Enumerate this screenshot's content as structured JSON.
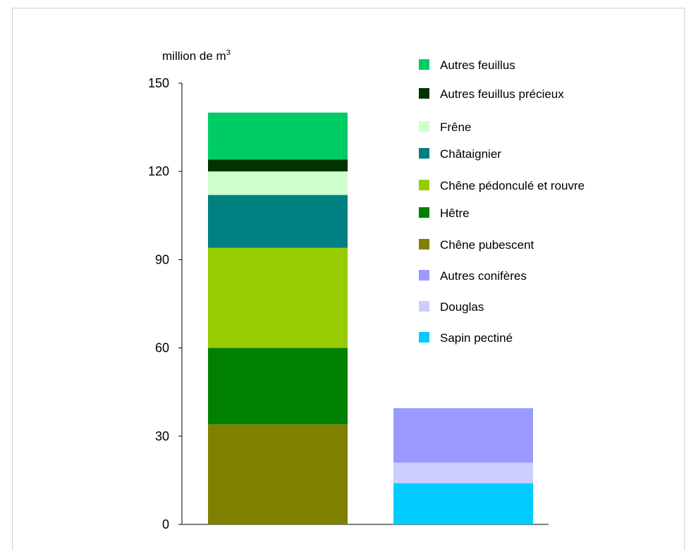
{
  "chart_data": {
    "type": "bar",
    "stacked": true,
    "ylabel": "million de m",
    "ylabel_superscript": "3",
    "ylim": [
      0,
      150
    ],
    "yticks": [
      0,
      30,
      60,
      90,
      120,
      150
    ],
    "grid": false,
    "legend_position": "right",
    "categories": [
      "",
      ""
    ],
    "series": [
      {
        "name": "Chêne pubescent",
        "color": "#808000",
        "values": [
          34,
          0
        ]
      },
      {
        "name": "Hêtre",
        "color": "#008000",
        "values": [
          26,
          0
        ]
      },
      {
        "name": "Chêne pédonculé et rouvre",
        "color": "#99cc00",
        "values": [
          34,
          0
        ]
      },
      {
        "name": "Châtaignier",
        "color": "#008080",
        "values": [
          18,
          0
        ]
      },
      {
        "name": "Frêne",
        "color": "#ccffcc",
        "values": [
          8,
          0
        ]
      },
      {
        "name": "Autres feuillus précieux",
        "color": "#003300",
        "values": [
          4,
          0
        ]
      },
      {
        "name": "Autres feuillus",
        "color": "#00cc66",
        "values": [
          16,
          0
        ]
      },
      {
        "name": "Sapin pectiné",
        "color": "#00ccff",
        "values": [
          0,
          14
        ]
      },
      {
        "name": "Douglas",
        "color": "#ccccff",
        "values": [
          0,
          7
        ]
      },
      {
        "name": "Autres conifères",
        "color": "#9999ff",
        "values": [
          0,
          18.5
        ]
      }
    ],
    "legend_order": [
      "Autres feuillus",
      "Autres feuillus précieux",
      "Frêne",
      "Châtaignier",
      "Chêne pédonculé et rouvre",
      "Hêtre",
      "Chêne pubescent",
      "Autres conifères",
      "Douglas",
      "Sapin pectiné"
    ]
  }
}
